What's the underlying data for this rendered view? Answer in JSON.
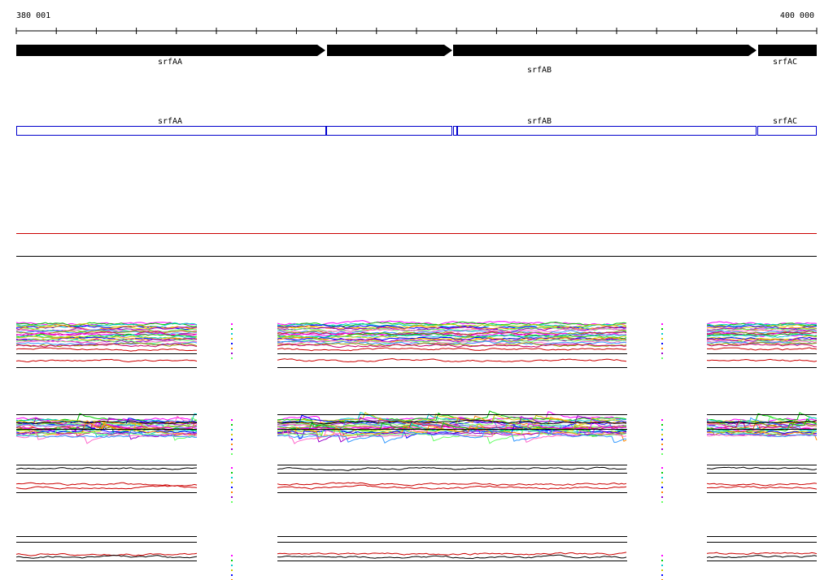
{
  "ruler": {
    "start": "380 001",
    "end": "400 000"
  },
  "genes": [
    {
      "label": "srfAA"
    },
    {
      "label": "srfAB"
    },
    {
      "label": "srfAC"
    }
  ],
  "features": [
    {
      "label": "srfAA"
    },
    {
      "label": "srfAB"
    },
    {
      "label": "srfAC"
    }
  ]
}
